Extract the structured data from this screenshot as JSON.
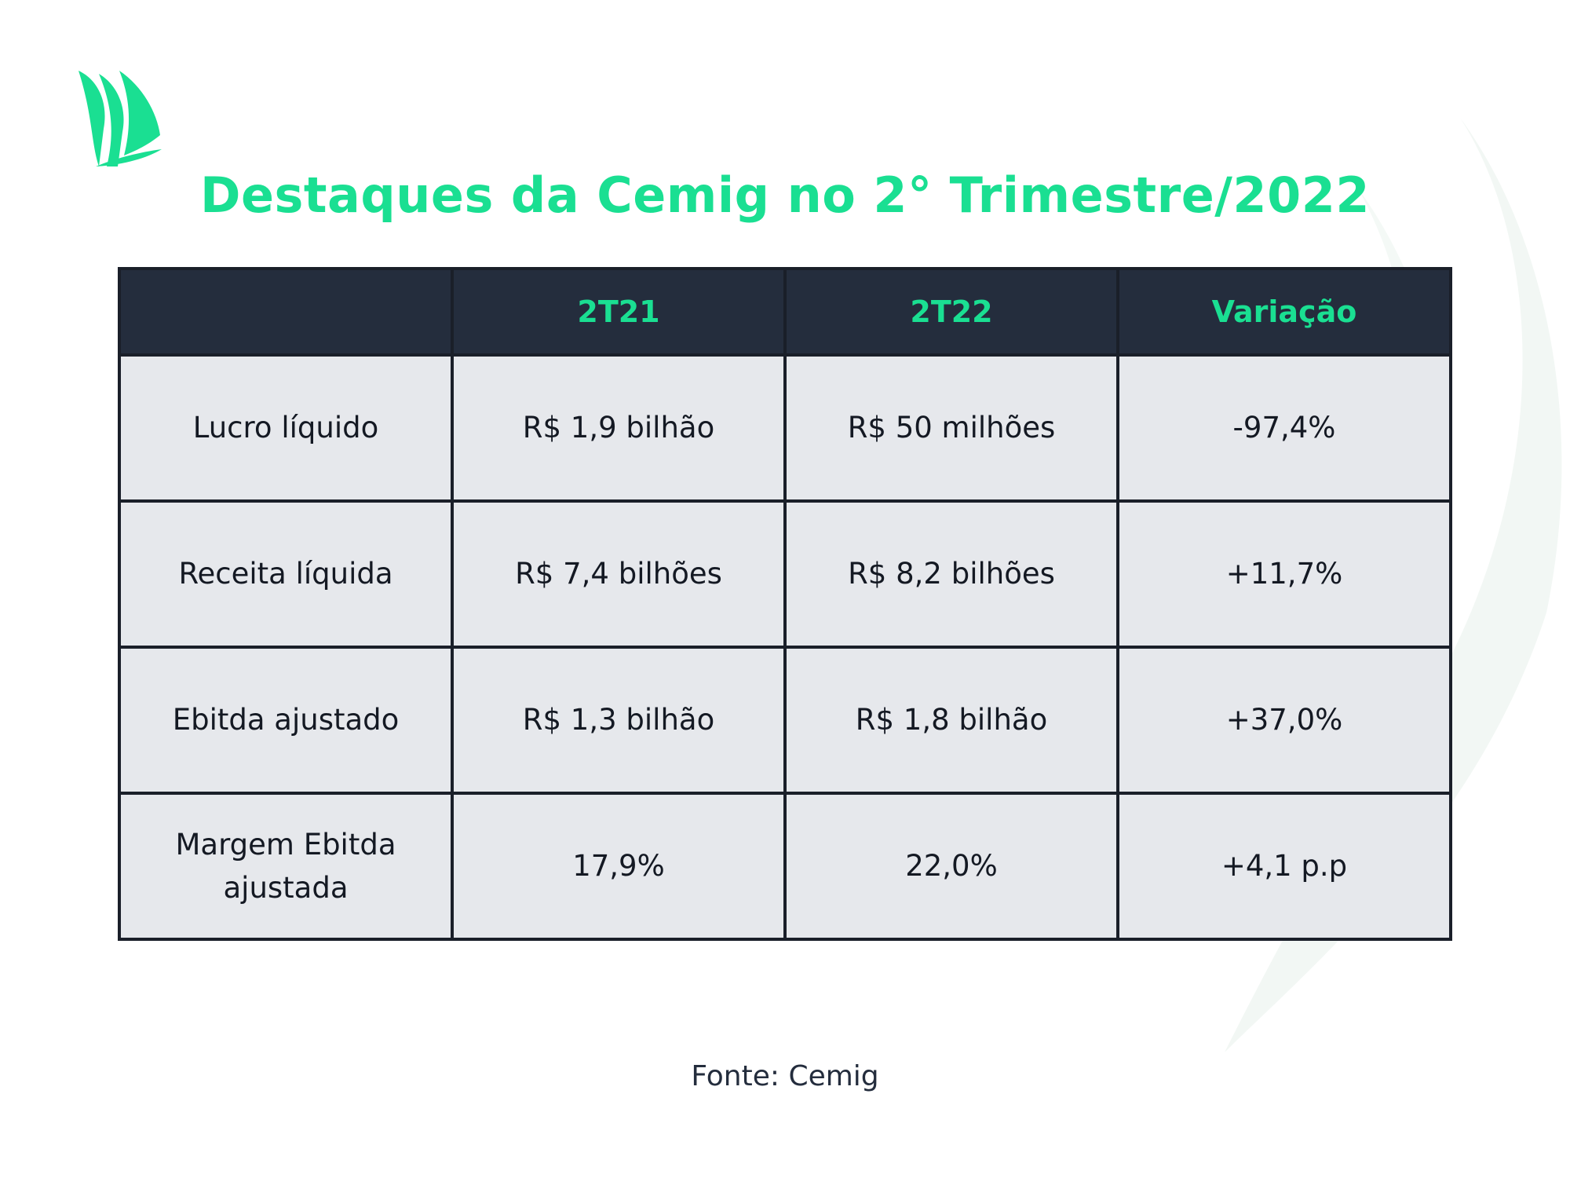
{
  "title": "Destaques da Cemig no 2° Trimestre/2022",
  "brand_color": "#1adf92",
  "header_color": "#242d3d",
  "cell_color": "#e6e8ec",
  "logo_icon": "green-sails-logo-icon",
  "table": {
    "headers": [
      "",
      "2T21",
      "2T22",
      "Variação"
    ],
    "rows": [
      [
        "Lucro líquido",
        "R$ 1,9 bilhão",
        "R$ 50 milhões",
        "-97,4%"
      ],
      [
        "Receita líquida",
        "R$ 7,4 bilhões",
        "R$ 8,2 bilhões",
        "+11,7%"
      ],
      [
        "Ebitda ajustado",
        "R$ 1,3 bilhão",
        "R$ 1,8 bilhão",
        "+37,0%"
      ],
      [
        "Margem Ebitda ajustada",
        "17,9%",
        "22,0%",
        "+4,1 p.p"
      ]
    ]
  },
  "source": "Fonte: Cemig"
}
